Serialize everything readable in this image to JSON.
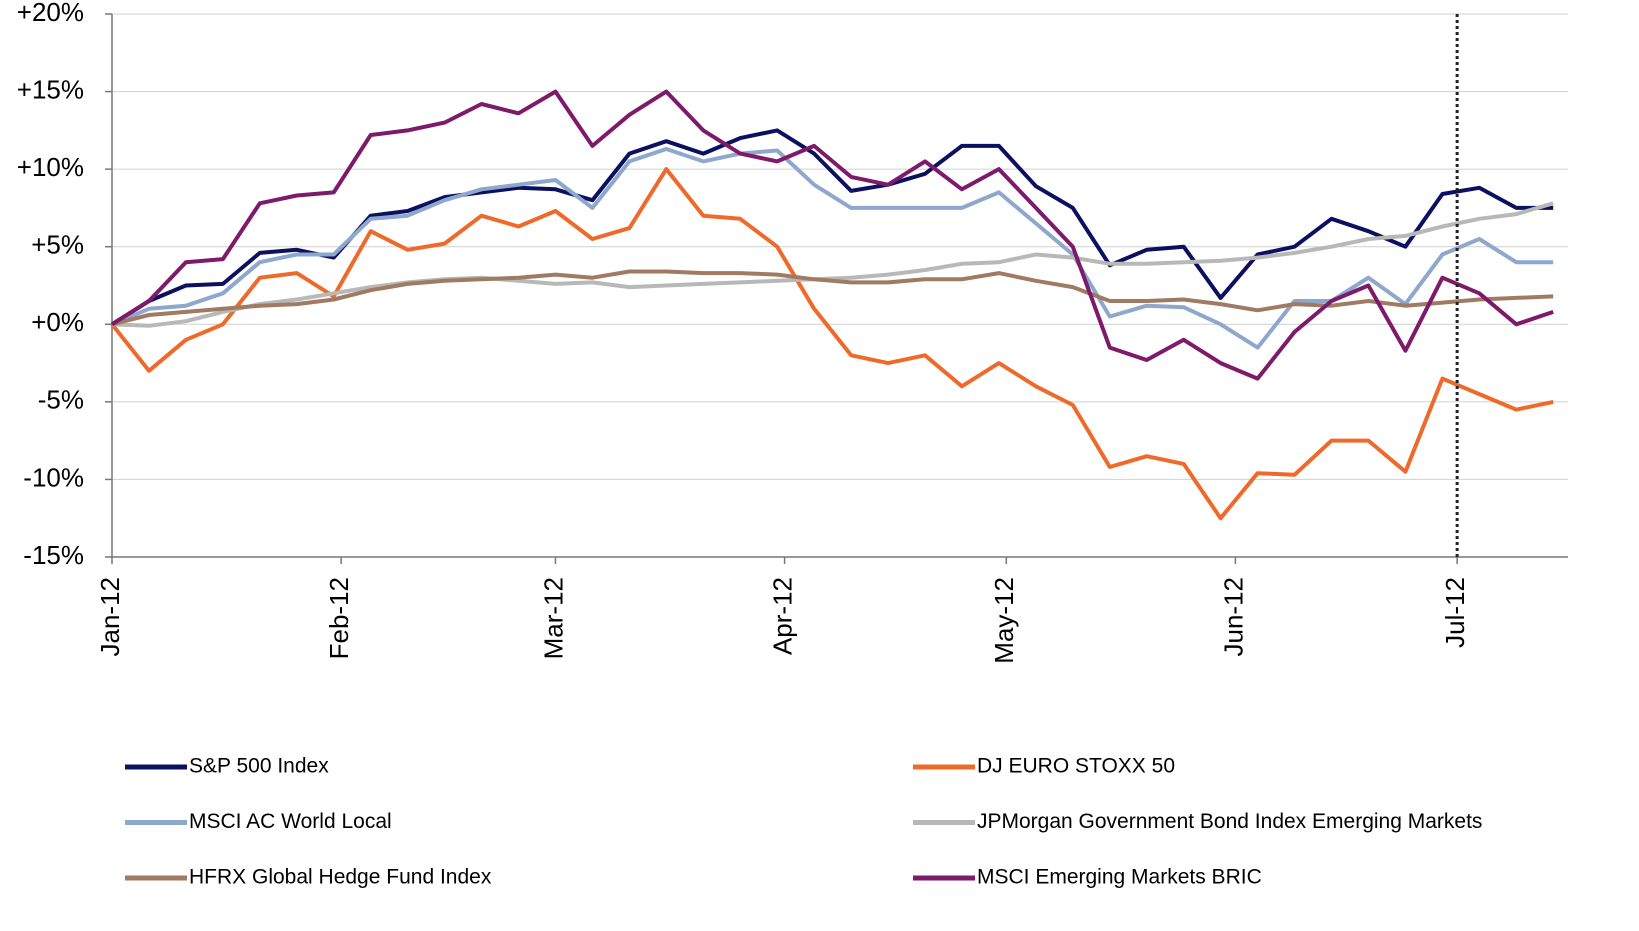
{
  "chart_data": {
    "type": "line",
    "x": [
      0,
      5,
      10,
      15,
      20,
      25,
      30,
      35,
      40,
      45,
      50,
      55,
      60,
      65,
      70,
      75,
      80,
      85,
      90,
      95,
      100,
      105,
      110,
      115,
      120,
      125,
      130,
      135,
      140,
      145,
      150,
      155,
      160,
      165,
      170,
      175,
      180,
      185,
      190,
      195
    ],
    "xlim": [
      0,
      197
    ],
    "xticks": [
      {
        "value": 0,
        "label": "Jan-12"
      },
      {
        "value": 31,
        "label": "Feb-12"
      },
      {
        "value": 60,
        "label": "Mar-12"
      },
      {
        "value": 91,
        "label": "Apr-12"
      },
      {
        "value": 121,
        "label": "May-12"
      },
      {
        "value": 152,
        "label": "Jun-12"
      },
      {
        "value": 182,
        "label": "Jul-12"
      }
    ],
    "ylim": [
      -15,
      20
    ],
    "yticks": [
      {
        "value": 20,
        "label": "+20%"
      },
      {
        "value": 15,
        "label": "+15%"
      },
      {
        "value": 10,
        "label": "+10%"
      },
      {
        "value": 5,
        "label": "+5%"
      },
      {
        "value": 0,
        "label": "+0%"
      },
      {
        "value": -5,
        "label": "-5%"
      },
      {
        "value": -10,
        "label": "-10%"
      },
      {
        "value": -15,
        "label": "-15%"
      }
    ],
    "grid": true,
    "vline": 182,
    "series": [
      {
        "name": "S&P 500 Index",
        "color": "#0c1060",
        "values": [
          0,
          1.5,
          2.5,
          2.6,
          4.6,
          4.8,
          4.3,
          7,
          7.3,
          8.2,
          8.5,
          8.8,
          8.7,
          8,
          11,
          11.8,
          11,
          12,
          12.5,
          11,
          8.6,
          9,
          9.7,
          11.5,
          11.5,
          8.9,
          7.5,
          3.8,
          4.8,
          5,
          1.7,
          4.5,
          5,
          6.8,
          6,
          5,
          8.4,
          8.8,
          7.5,
          7.5
        ]
      },
      {
        "name": "DJ EURO STOXX 50",
        "color": "#ef6a2a",
        "values": [
          0,
          -3,
          -1,
          0,
          3,
          3.3,
          1.8,
          6,
          4.8,
          5.2,
          7,
          6.3,
          7.3,
          5.5,
          6.2,
          10,
          7,
          6.8,
          5,
          1,
          -2,
          -2.5,
          -2,
          -4,
          -2.5,
          -4,
          -5.2,
          -9.2,
          -8.5,
          -9,
          -12.5,
          -9.6,
          -9.7,
          -7.5,
          -7.5,
          -9.5,
          -3.5,
          -4.5,
          -5.5,
          -5
        ]
      },
      {
        "name": "MSCI AC World Local",
        "color": "#8ea7cc",
        "values": [
          0,
          1,
          1.2,
          2,
          4,
          4.5,
          4.5,
          6.8,
          7,
          8,
          8.7,
          9,
          9.3,
          7.5,
          10.5,
          11.3,
          10.5,
          11,
          11.2,
          9,
          7.5,
          7.5,
          7.5,
          7.5,
          8.5,
          6.5,
          4.5,
          0.5,
          1.2,
          1.1,
          0,
          -1.5,
          1.5,
          1.5,
          3,
          1.3,
          4.5,
          5.5,
          4,
          4
        ]
      },
      {
        "name": "JPMorgan Government Bond Index Emerging Markets",
        "color": "#b8b8b8",
        "values": [
          0,
          -0.1,
          0.2,
          0.8,
          1.3,
          1.6,
          2,
          2.4,
          2.7,
          2.9,
          3,
          2.8,
          2.6,
          2.7,
          2.4,
          2.5,
          2.6,
          2.7,
          2.8,
          2.9,
          3,
          3.2,
          3.5,
          3.9,
          4,
          4.5,
          4.3,
          3.9,
          3.9,
          4,
          4.1,
          4.3,
          4.6,
          5,
          5.5,
          5.7,
          6.3,
          6.8,
          7.1,
          7.8
        ]
      },
      {
        "name": "HFRX Global Hedge Fund Index",
        "color": "#a07a62",
        "values": [
          0,
          0.6,
          0.8,
          1,
          1.2,
          1.3,
          1.6,
          2.2,
          2.6,
          2.8,
          2.9,
          3,
          3.2,
          3,
          3.4,
          3.4,
          3.3,
          3.3,
          3.2,
          2.9,
          2.7,
          2.7,
          2.9,
          2.9,
          3.3,
          2.8,
          2.4,
          1.5,
          1.5,
          1.6,
          1.3,
          0.9,
          1.3,
          1.2,
          1.5,
          1.2,
          1.4,
          1.6,
          1.7,
          1.8
        ]
      },
      {
        "name": "MSCI Emerging Markets BRIC",
        "color": "#7e1a6a",
        "values": [
          0,
          1.5,
          4,
          4.2,
          7.8,
          8.3,
          8.5,
          12.2,
          12.5,
          13,
          14.2,
          13.6,
          15,
          11.5,
          13.5,
          15,
          12.5,
          11,
          10.5,
          11.5,
          9.5,
          9,
          10.5,
          8.7,
          10,
          7.5,
          5,
          -1.5,
          -2.3,
          -1,
          -2.5,
          -3.5,
          -0.5,
          1.5,
          2.5,
          -1.7,
          3,
          2,
          0,
          0.8
        ]
      }
    ]
  }
}
